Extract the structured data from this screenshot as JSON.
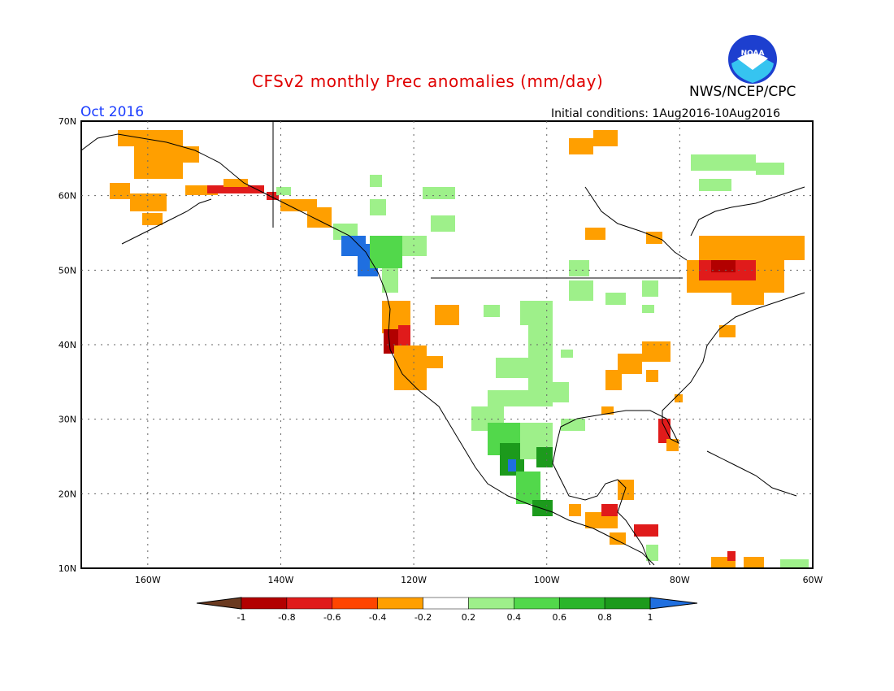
{
  "header": {
    "title": "CFSv2 monthly Prec anomalies (mm/day)",
    "agency": "NWS/NCEP/CPC",
    "month": "Oct 2016",
    "initial_conditions": "Initial conditions: 1Aug2016-10Aug2016",
    "logo_text": "NOAA"
  },
  "map": {
    "lat_labels": [
      "70N",
      "60N",
      "50N",
      "40N",
      "30N",
      "20N",
      "10N"
    ],
    "lon_labels": [
      "160W",
      "140W",
      "120W",
      "100W",
      "80W",
      "60W"
    ],
    "extent": {
      "lon_min": -170,
      "lon_max": -60,
      "lat_min": 10,
      "lat_max": 70
    },
    "gridlines": "dotted"
  },
  "colorbar": {
    "labels": [
      "-1",
      "-0.8",
      "-0.6",
      "-0.4",
      "-0.2",
      "0.2",
      "0.4",
      "0.6",
      "0.8",
      "1"
    ],
    "colors": [
      "#6b3a20",
      "#b20000",
      "#e01b1b",
      "#ff4500",
      "#ff9f00",
      "#ffffff",
      "#9ef08a",
      "#52d84b",
      "#2bb52b",
      "#1c9a1c",
      "#1f6fe0"
    ]
  },
  "anomaly_colors": {
    "dry_strong": "#b20000",
    "dry_mod": "#e01b1b",
    "dry_light": "#ff9f00",
    "wet_light": "#9ef08a",
    "wet_mod": "#52d84b",
    "wet_strong": "#1c9a1c",
    "wet_max": "#1f6fe0"
  }
}
